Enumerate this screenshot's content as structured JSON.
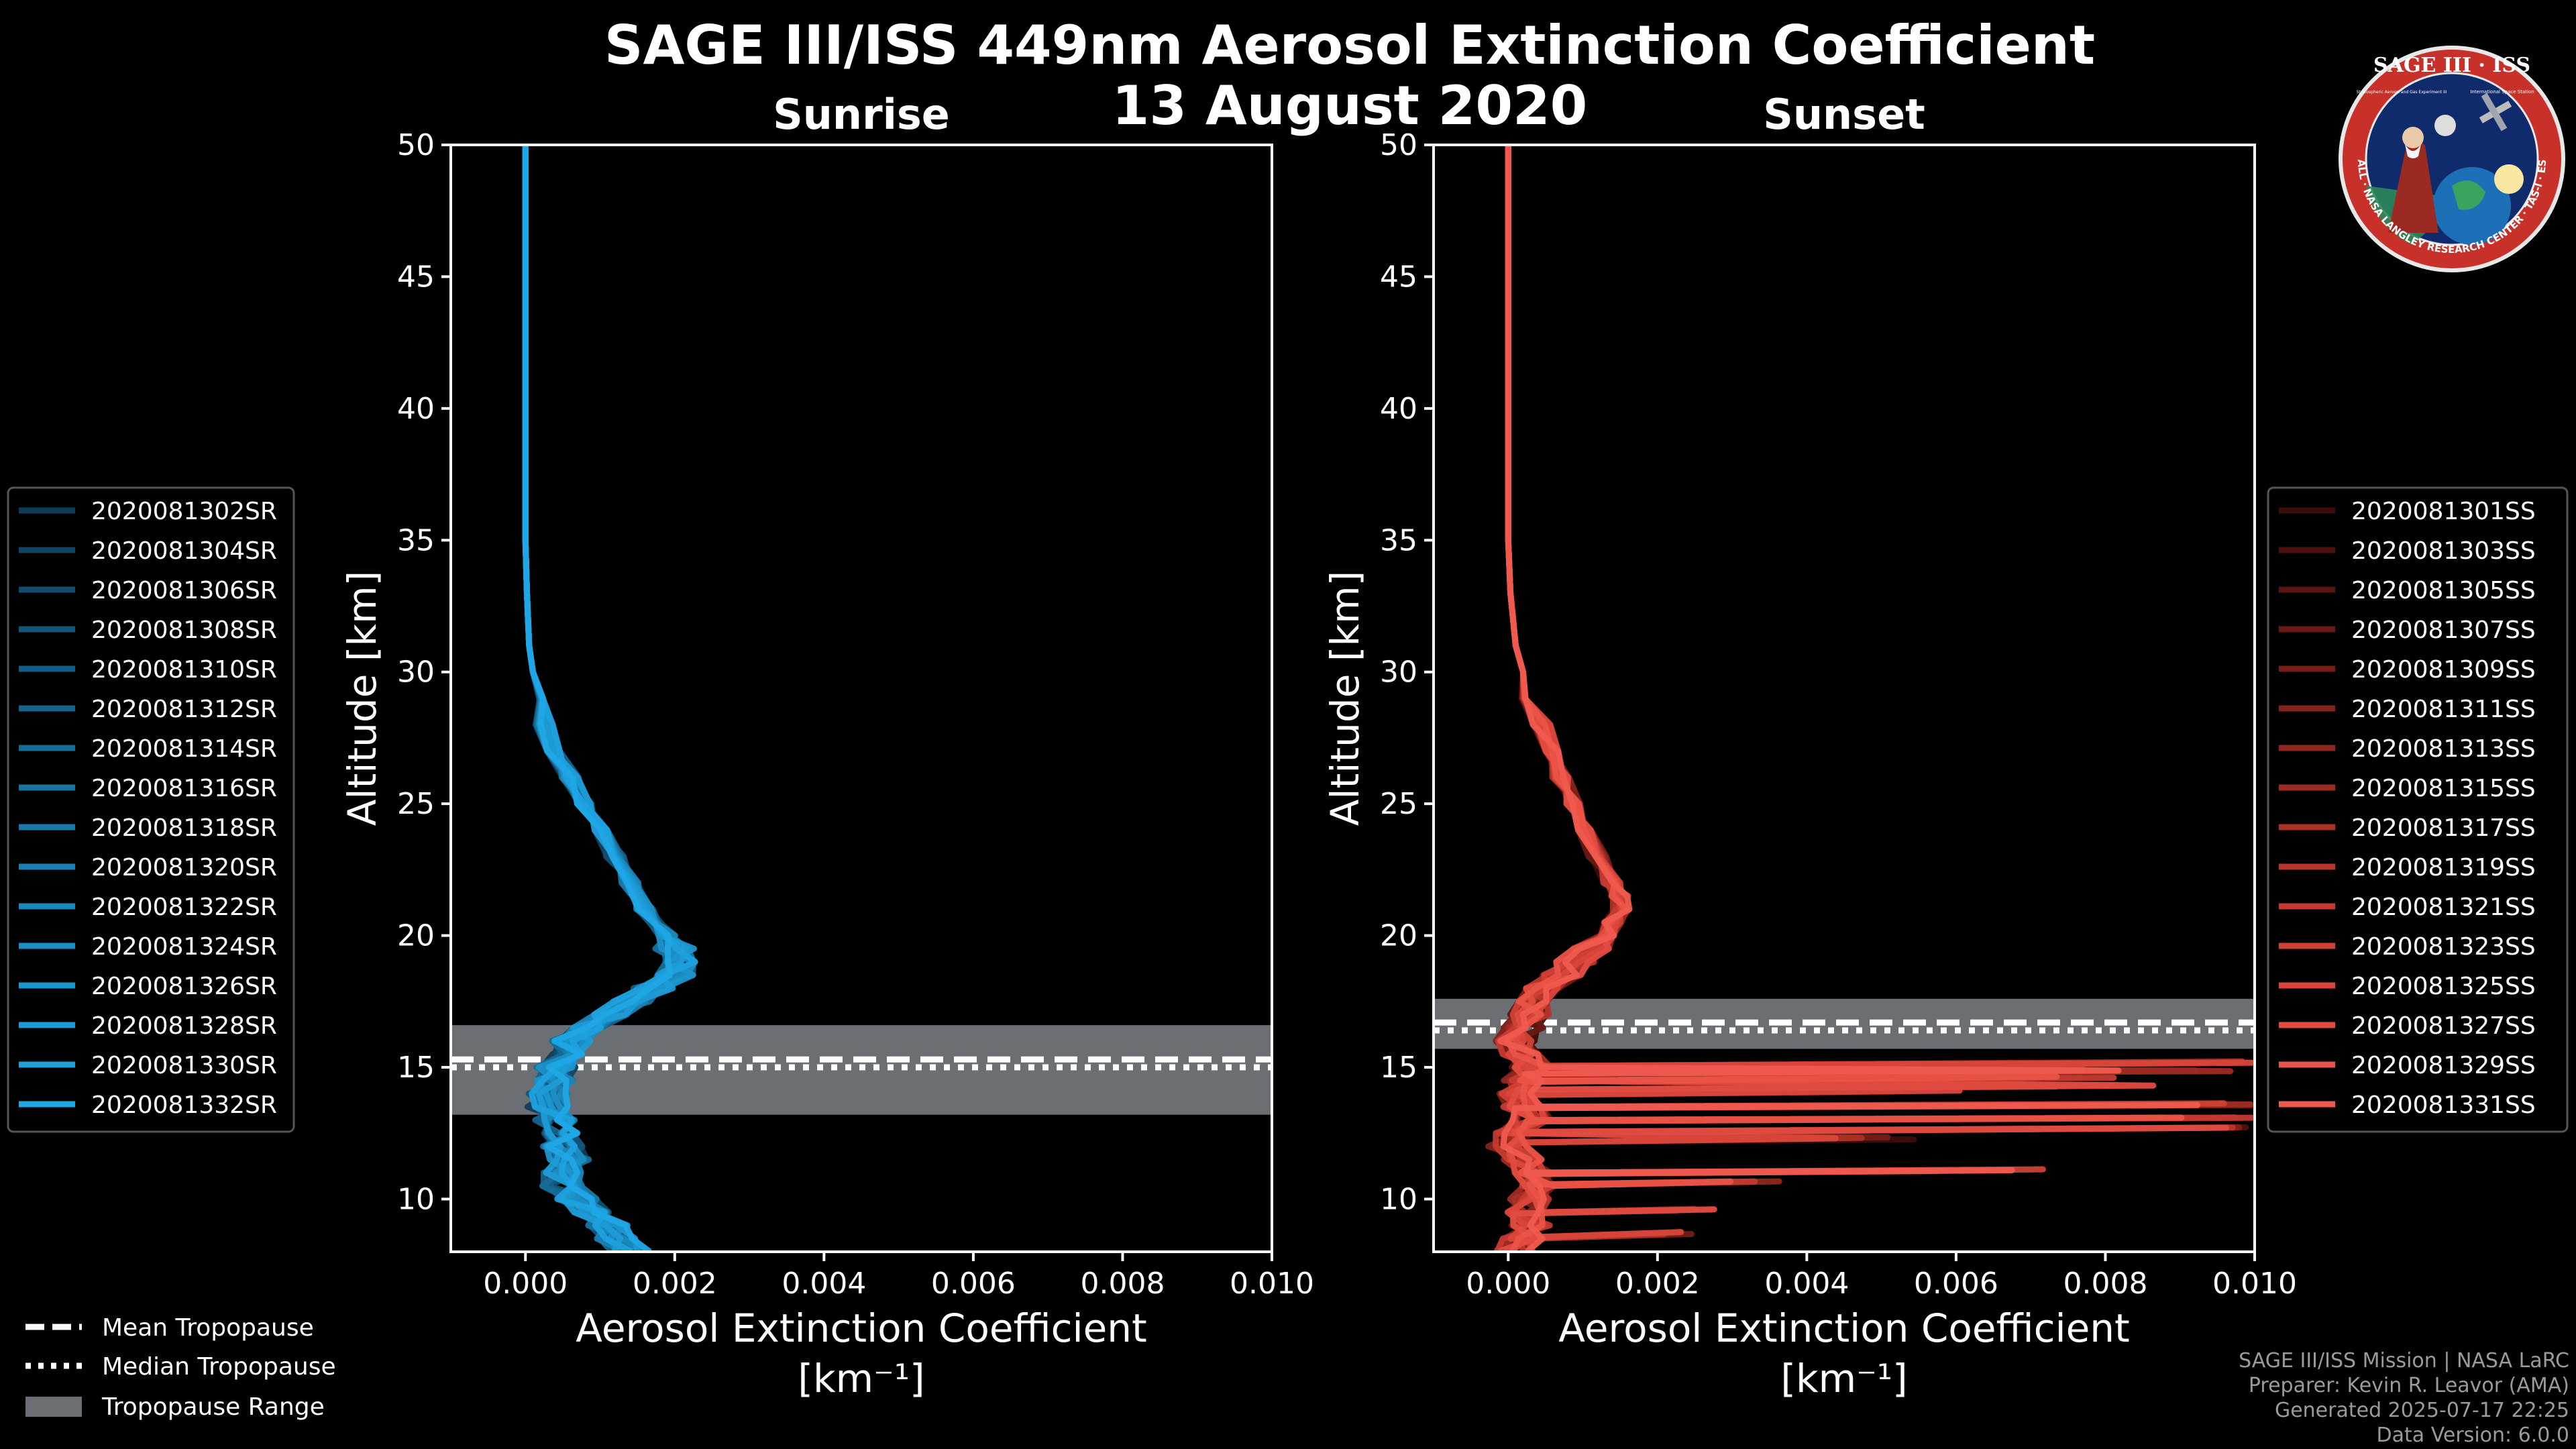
{
  "figure": {
    "title_line1": "SAGE III/ISS 449nm Aerosol Extinction Coefficient",
    "title_line2": "13 August 2020",
    "footer": [
      "SAGE III/ISS Mission | NASA LaRC",
      "Preparer: Kevin R. Leavor (AMA)",
      "Generated 2025-07-17 22:25",
      "Data Version: 6.0.0"
    ],
    "logo": {
      "top_text": "SAGE III · ISS",
      "ring_text": "BALL · NASA LANGLEY RESEARCH CENTER · TAS-I · ESA",
      "inner_left": "Stratospheric Aerosol and Gas Experiment III",
      "inner_right": "International Space Station"
    },
    "legend_common": [
      {
        "label": "Mean Tropopause",
        "style": "dashed"
      },
      {
        "label": "Median Tropopause",
        "style": "dotted"
      },
      {
        "label": "Tropopause Range",
        "style": "patch"
      }
    ]
  },
  "chart_data": [
    {
      "type": "line",
      "title": "Sunrise",
      "xlabel": "Aerosol Extinction Coefficient",
      "xlabel_unit": "[km⁻¹]",
      "ylabel": "Altitude [km]",
      "xlim": [
        -0.001,
        0.01
      ],
      "ylim": [
        8,
        50
      ],
      "xticks": [
        0.0,
        0.002,
        0.004,
        0.006,
        0.008,
        0.01
      ],
      "xtick_labels": [
        "0.000",
        "0.002",
        "0.004",
        "0.006",
        "0.008",
        "0.010"
      ],
      "yticks": [
        10,
        15,
        20,
        25,
        30,
        35,
        40,
        45,
        50
      ],
      "ytick_labels": [
        "10",
        "15",
        "20",
        "25",
        "30",
        "35",
        "40",
        "45",
        "50"
      ],
      "tropopause": {
        "mean": 15.3,
        "median": 15.0,
        "range": [
          13.2,
          16.6
        ]
      },
      "base_profile": {
        "altitude": [
          50,
          45,
          40,
          35,
          33,
          31,
          30,
          29,
          28,
          27,
          26,
          25,
          24,
          23,
          22,
          21,
          20,
          19.5,
          19,
          18.5,
          18,
          17.5,
          17,
          16.5,
          16,
          15.5,
          15,
          14.5,
          14,
          13.5,
          13,
          12.5,
          12,
          11.5,
          11,
          10.5,
          10,
          9.5,
          9,
          8.5,
          8
        ],
        "extinction": [
          0.0,
          0.0,
          0.0,
          0.0,
          2e-05,
          5e-05,
          0.0001,
          0.00015,
          0.00025,
          0.0004,
          0.0006,
          0.0008,
          0.001,
          0.0012,
          0.0014,
          0.0016,
          0.0019,
          0.002,
          0.0021,
          0.002,
          0.0017,
          0.0014,
          0.0011,
          0.0008,
          0.0006,
          0.0005,
          0.0004,
          0.0004,
          0.0003,
          0.0003,
          0.0004,
          0.0005,
          0.0005,
          0.0006,
          0.0005,
          0.0005,
          0.0007,
          0.0009,
          0.0011,
          0.0012,
          0.0014
        ]
      },
      "legend_position": "left",
      "series": [
        {
          "name": "2020081302SR",
          "color": "#0f3c59"
        },
        {
          "name": "2020081304SR",
          "color": "#104563"
        },
        {
          "name": "2020081306SR",
          "color": "#124d6e"
        },
        {
          "name": "2020081308SR",
          "color": "#135578"
        },
        {
          "name": "2020081310SR",
          "color": "#145d82"
        },
        {
          "name": "2020081312SR",
          "color": "#15648c"
        },
        {
          "name": "2020081314SR",
          "color": "#166c96"
        },
        {
          "name": "2020081316SR",
          "color": "#1773a0"
        },
        {
          "name": "2020081318SR",
          "color": "#187aa9"
        },
        {
          "name": "2020081320SR",
          "color": "#1981b3"
        },
        {
          "name": "2020081322SR",
          "color": "#1a88bc"
        },
        {
          "name": "2020081324SR",
          "color": "#1b8fc5"
        },
        {
          "name": "2020081326SR",
          "color": "#1c95ce"
        },
        {
          "name": "2020081328SR",
          "color": "#1d9bd6"
        },
        {
          "name": "2020081330SR",
          "color": "#1ea1de"
        },
        {
          "name": "2020081332SR",
          "color": "#1fa7e6"
        }
      ]
    },
    {
      "type": "line",
      "title": "Sunset",
      "xlabel": "Aerosol Extinction Coefficient",
      "xlabel_unit": "[km⁻¹]",
      "ylabel": "Altitude [km]",
      "xlim": [
        -0.001,
        0.01
      ],
      "ylim": [
        8,
        50
      ],
      "xticks": [
        0.0,
        0.002,
        0.004,
        0.006,
        0.008,
        0.01
      ],
      "xtick_labels": [
        "0.000",
        "0.002",
        "0.004",
        "0.006",
        "0.008",
        "0.010"
      ],
      "yticks": [
        10,
        15,
        20,
        25,
        30,
        35,
        40,
        45,
        50
      ],
      "ytick_labels": [
        "10",
        "15",
        "20",
        "25",
        "30",
        "35",
        "40",
        "45",
        "50"
      ],
      "tropopause": {
        "mean": 16.7,
        "median": 16.4,
        "range": [
          15.7,
          17.6
        ]
      },
      "base_profile": {
        "altitude": [
          50,
          45,
          40,
          35,
          33,
          31,
          30,
          29,
          28,
          27,
          26,
          25,
          24,
          23,
          22,
          21.5,
          21,
          20.5,
          20,
          19.5,
          19,
          18.5,
          18,
          17.5,
          17,
          16.5,
          16,
          15.5,
          15,
          14.5,
          14,
          13.5,
          13,
          12.5,
          12,
          11.5,
          11,
          10.5,
          10,
          9.5,
          9,
          8.5,
          8
        ],
        "extinction": [
          0.0,
          0.0,
          0.0,
          0.0,
          3e-05,
          0.0001,
          0.0002,
          0.0003,
          0.00045,
          0.0006,
          0.0007,
          0.00085,
          0.001,
          0.0012,
          0.0014,
          0.0015,
          0.0015,
          0.0014,
          0.0013,
          0.0011,
          0.0009,
          0.0007,
          0.0005,
          0.0004,
          0.0003,
          0.0002,
          0.0001,
          0.0002,
          0.0003,
          0.0002,
          0.0001,
          0.0002,
          0.0003,
          0.0001,
          0.0,
          0.0002,
          0.0003,
          0.0004,
          0.0003,
          0.0002,
          0.0003,
          0.0002,
          0.0001
        ]
      },
      "spikes": [
        {
          "altitude": 15.2,
          "value": 0.0105
        },
        {
          "altitude": 14.9,
          "value": 0.0098
        },
        {
          "altitude": 14.6,
          "value": 0.0079
        },
        {
          "altitude": 14.3,
          "value": 0.0085
        },
        {
          "altitude": 14.1,
          "value": 0.0062
        },
        {
          "altitude": 13.6,
          "value": 0.0101
        },
        {
          "altitude": 13.1,
          "value": 0.0105
        },
        {
          "altitude": 12.7,
          "value": 0.0102
        },
        {
          "altitude": 12.3,
          "value": 0.0055
        },
        {
          "altitude": 11.1,
          "value": 0.0073
        },
        {
          "altitude": 10.7,
          "value": 0.0038
        },
        {
          "altitude": 9.6,
          "value": 0.0029
        },
        {
          "altitude": 8.7,
          "value": 0.0024
        }
      ],
      "legend_position": "right",
      "series": [
        {
          "name": "2020081301SS",
          "color": "#3d0d0b"
        },
        {
          "name": "2020081303SS",
          "color": "#4b110e"
        },
        {
          "name": "2020081305SS",
          "color": "#591510"
        },
        {
          "name": "2020081307SS",
          "color": "#671913"
        },
        {
          "name": "2020081309SS",
          "color": "#751d16"
        },
        {
          "name": "2020081311SS",
          "color": "#83221a"
        },
        {
          "name": "2020081313SS",
          "color": "#91261e"
        },
        {
          "name": "2020081315SS",
          "color": "#9e2b22"
        },
        {
          "name": "2020081317SS",
          "color": "#ab3026"
        },
        {
          "name": "2020081319SS",
          "color": "#b8352b"
        },
        {
          "name": "2020081321SS",
          "color": "#c43a30"
        },
        {
          "name": "2020081323SS",
          "color": "#cf4035"
        },
        {
          "name": "2020081325SS",
          "color": "#d9463b"
        },
        {
          "name": "2020081327SS",
          "color": "#e24c41"
        },
        {
          "name": "2020081329SS",
          "color": "#ea5347"
        },
        {
          "name": "2020081331SS",
          "color": "#f05a4e"
        }
      ]
    }
  ]
}
